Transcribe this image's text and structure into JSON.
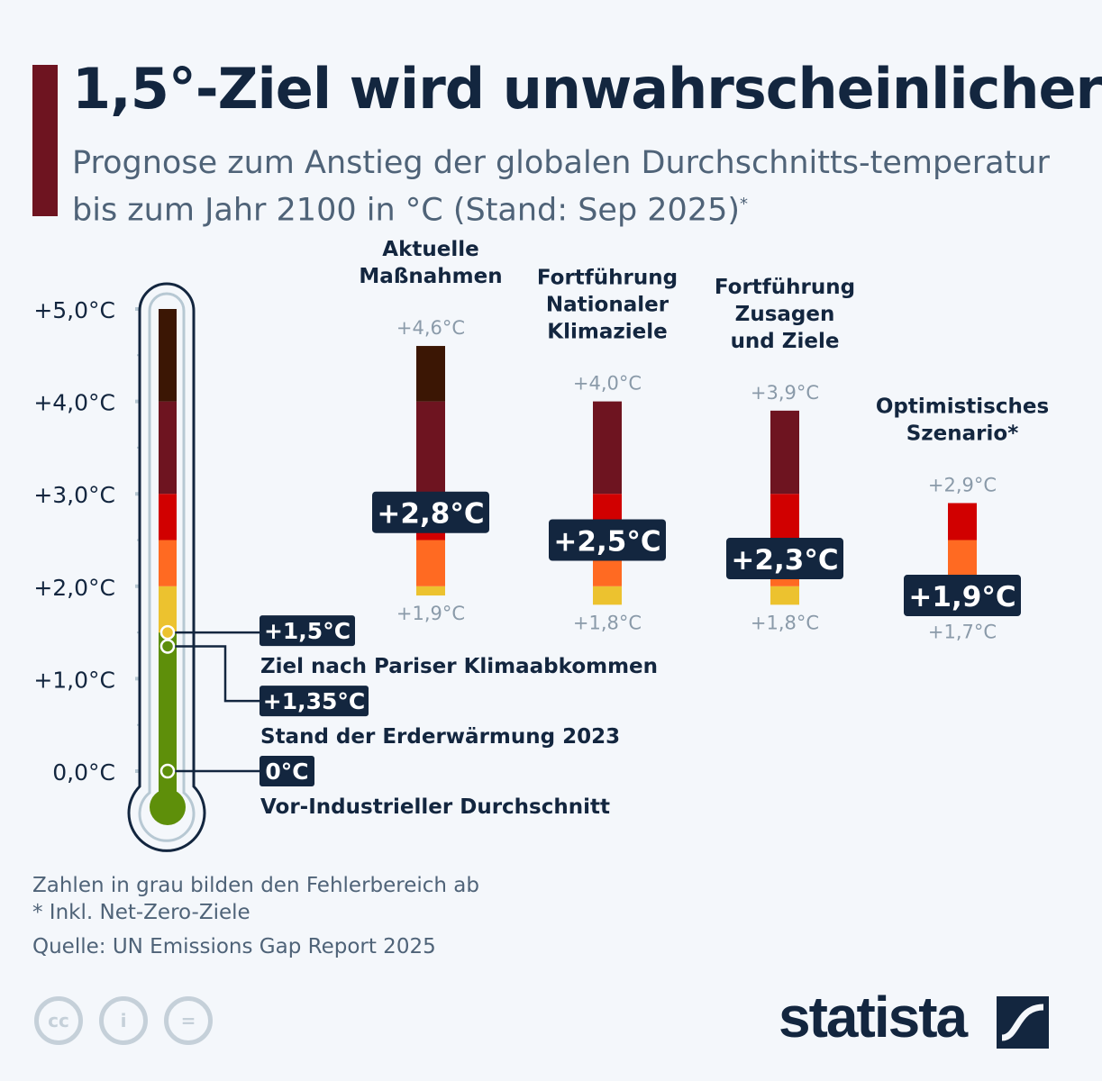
{
  "header": {
    "title": "1,5°-Ziel wird unwahrscheinlicher",
    "subtitle": "Prognose zum Anstieg der globalen Durchschnitts-temperatur bis zum Jahr 2100 in °C (Stand: Sep 2025)",
    "subtitle_mark": "*"
  },
  "colors": {
    "accent": "#6e1420",
    "navy": "#13263f",
    "grey_text": "#8a9aa9",
    "band_0_1_5": "#5e8f0a",
    "band_1_5_2": "#ecc22f",
    "band_2_2_5": "#ff6a22",
    "band_2_5_3": "#d10000",
    "band_3_4": "#6e1420",
    "band_4_5": "#3b1604"
  },
  "chart_data": {
    "type": "range-bar",
    "ylim": [
      0,
      5
    ],
    "y_ticks": [
      "0,0°C",
      "+1,0°C",
      "+2,0°C",
      "+3,0°C",
      "+4,0°C",
      "+5,0°C"
    ],
    "bands": [
      {
        "from": 0,
        "to": 1.5,
        "color": "#5e8f0a"
      },
      {
        "from": 1.5,
        "to": 2,
        "color": "#ecc22f"
      },
      {
        "from": 2,
        "to": 2.5,
        "color": "#ff6a22"
      },
      {
        "from": 2.5,
        "to": 3,
        "color": "#d10000"
      },
      {
        "from": 3,
        "to": 4,
        "color": "#6e1420"
      },
      {
        "from": 4,
        "to": 5,
        "color": "#3b1604"
      }
    ],
    "markers": [
      {
        "value": 1.5,
        "label": "+1,5°C",
        "description": "Ziel nach Pariser Klimaabkommen"
      },
      {
        "value": 1.35,
        "label": "+1,35°C",
        "description": "Stand der Erderwärmung 2023"
      },
      {
        "value": 0,
        "label": "0°C",
        "description": "Vor-Industrieller Durchschnitt"
      }
    ],
    "scenarios": [
      {
        "name_lines": [
          "Aktuelle",
          "Maßnahmen"
        ],
        "low": 1.9,
        "high": 4.6,
        "median": 2.8,
        "low_label": "+1,9°C",
        "high_label": "+4,6°C",
        "median_label": "+2,8°C"
      },
      {
        "name_lines": [
          "Fortführung",
          "Nationaler",
          "Klimaziele"
        ],
        "low": 1.8,
        "high": 4.0,
        "median": 2.5,
        "low_label": "+1,8°C",
        "high_label": "+4,0°C",
        "median_label": "+2,5°C"
      },
      {
        "name_lines": [
          "Fortführung",
          "Zusagen",
          "und Ziele"
        ],
        "low": 1.8,
        "high": 3.9,
        "median": 2.3,
        "low_label": "+1,8°C",
        "high_label": "+3,9°C",
        "median_label": "+2,3°C"
      },
      {
        "name_lines": [
          "Optimistisches",
          "Szenario*"
        ],
        "low": 1.7,
        "high": 2.9,
        "median": 1.9,
        "low_label": "+1,7°C",
        "high_label": "+2,9°C",
        "median_label": "+1,9°C"
      }
    ]
  },
  "footer": {
    "note1": "Zahlen in grau bilden den Fehlerbereich ab",
    "note2": "* Inkl. Net-Zero-Ziele",
    "source": "Quelle: UN Emissions Gap Report 2025",
    "brand": "statista",
    "cc": "cc",
    "by": "i",
    "nd": "="
  }
}
